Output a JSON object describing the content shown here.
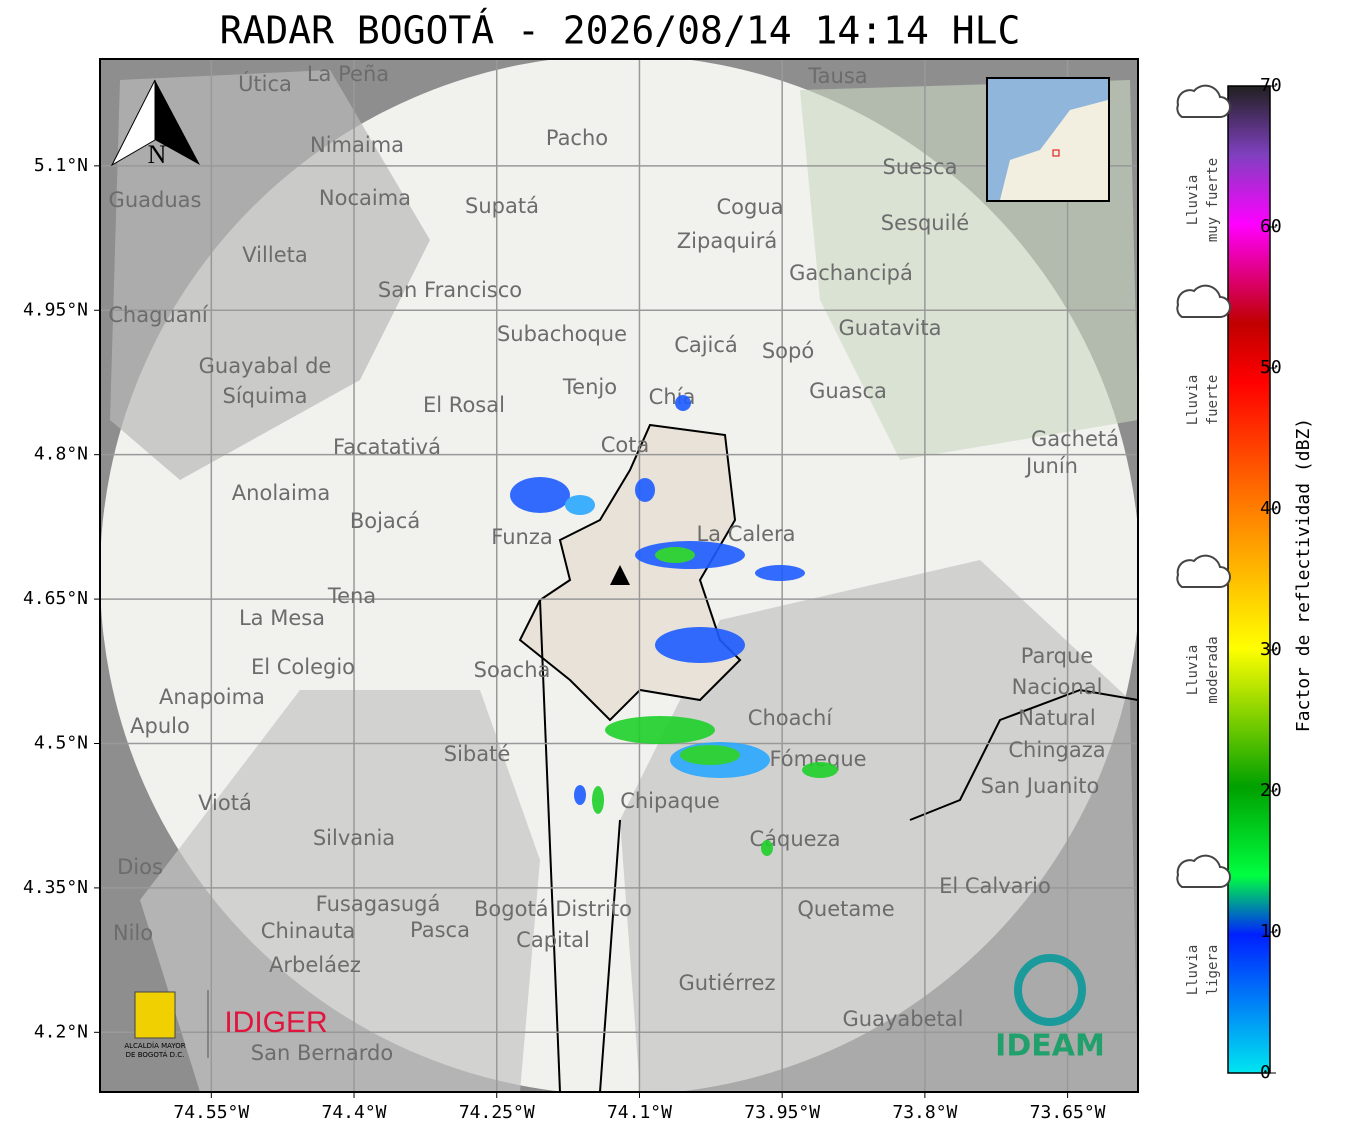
{
  "title": "RADAR BOGOTÁ - 2026/08/14 14:14 HLC",
  "map": {
    "xlim": [
      -74.667,
      -73.576
    ],
    "ylim": [
      4.138,
      5.211
    ],
    "xticks": [
      {
        "value": -74.55,
        "label": "74.55°W"
      },
      {
        "value": -74.4,
        "label": "74.4°W"
      },
      {
        "value": -74.25,
        "label": "74.25°W"
      },
      {
        "value": -74.1,
        "label": "74.1°W"
      },
      {
        "value": -73.95,
        "label": "73.95°W"
      },
      {
        "value": -73.8,
        "label": "73.8°W"
      },
      {
        "value": -73.65,
        "label": "73.65°W"
      }
    ],
    "yticks": [
      {
        "value": 5.1,
        "label": "5.1°N"
      },
      {
        "value": 4.95,
        "label": "4.95°N"
      },
      {
        "value": 4.8,
        "label": "4.8°N"
      },
      {
        "value": 4.65,
        "label": "4.65°N"
      },
      {
        "value": 4.5,
        "label": "4.5°N"
      },
      {
        "value": 4.35,
        "label": "4.35°N"
      },
      {
        "value": 4.2,
        "label": "4.2°N"
      }
    ],
    "north": "N",
    "places": [
      "La Peña",
      "Útica",
      "Tausa",
      "Pacho",
      "Nimaima",
      "Suesca",
      "Guaduas",
      "Nocaima",
      "Supatá",
      "Cogua",
      "Zipaquirá",
      "Sesquilé",
      "Villeta",
      "Gachancipá",
      "San Francisco",
      "Chaguaní",
      "Guatavita",
      "Subachoque",
      "Cajicá",
      "Sopó",
      "Guayabal de",
      "Síquima",
      "Tenjo",
      "Guasca",
      "Chía",
      "El Rosal",
      "Facatativá",
      "Cota",
      "Gachetá",
      "Junín",
      "Anolaima",
      "Bojacá",
      "Funza",
      "La Calera",
      "Tena",
      "La Mesa",
      "El Colegio",
      "Soacha",
      "Parque",
      "Nacional",
      "Natural",
      "Chingaza",
      "Anapoima",
      "Apulo",
      "Choachí",
      "Sibaté",
      "Fómeque",
      "San Juanito",
      "Viotá",
      "Chipaque",
      "Silvania",
      "Cáqueza",
      "Dios",
      "El Calvario",
      "Fusagasugá",
      "Quetame",
      "Bogotá Distrito",
      "Capital",
      "Nilo",
      "Chinauta",
      "Pasca",
      "Arbeláez",
      "Gutiérrez",
      "Guayabetal",
      "San Bernardo"
    ]
  },
  "logos": {
    "alcaldia": [
      "ALCALDÍA MAYOR",
      "DE BOGOTÁ D.C."
    ],
    "idiger": "IDIGER",
    "ideam": "IDEAM"
  },
  "colorbar": {
    "lim": [
      0,
      70
    ],
    "ticks": [
      0,
      10,
      20,
      30,
      40,
      50,
      60,
      70
    ],
    "label": "Factor de reflectividad (dBZ)"
  },
  "rain_levels": [
    [
      "Lluvia",
      "muy fuerte"
    ],
    [
      "Lluvia",
      "fuerte"
    ],
    [
      "Lluvia",
      "moderada"
    ],
    [
      "Lluvia",
      "ligera"
    ]
  ]
}
